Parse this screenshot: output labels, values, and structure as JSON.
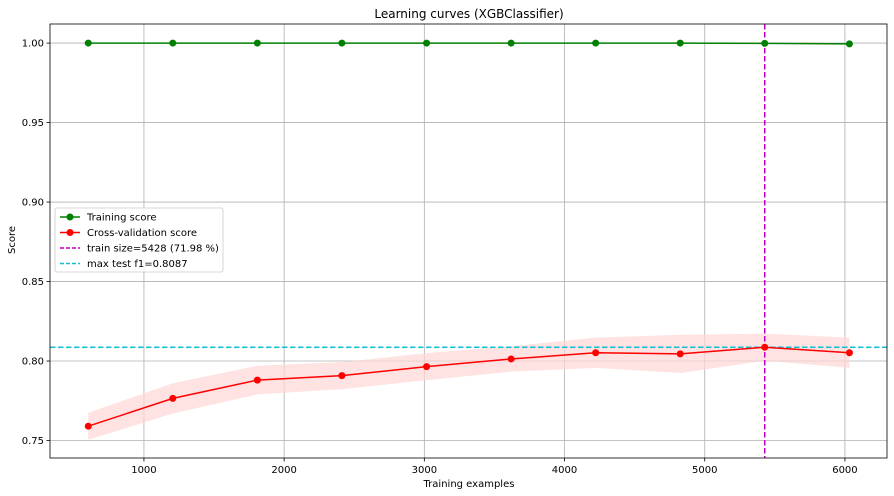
{
  "chart_data": {
    "type": "line",
    "title": "Learning curves (XGBClassifier)",
    "xlabel": "Training examples",
    "ylabel": "Score",
    "xlim": [
      330,
      6300
    ],
    "ylim": [
      0.739,
      1.012
    ],
    "xticks": [
      1000,
      2000,
      3000,
      4000,
      5000,
      6000
    ],
    "xtick_labels": [
      "1000",
      "2000",
      "3000",
      "4000",
      "5000",
      "6000"
    ],
    "yticks": [
      0.75,
      0.8,
      0.85,
      0.9,
      0.95,
      1.0
    ],
    "ytick_labels": [
      "0.75",
      "0.80",
      "0.85",
      "0.90",
      "0.95",
      "1.00"
    ],
    "grid": true,
    "legend_position": "center-left",
    "x": [
      603,
      1206,
      1809,
      2412,
      3016,
      3619,
      4222,
      4825,
      5428,
      6032
    ],
    "series": [
      {
        "name": "Training score",
        "color": "#008000",
        "values": [
          1.0,
          1.0,
          1.0,
          1.0,
          1.0,
          1.0,
          1.0,
          1.0,
          0.9998,
          0.9995
        ],
        "std": [
          0.0,
          0.0,
          0.0,
          0.0,
          0.0,
          0.0,
          0.0,
          0.0,
          0.0002,
          0.0003
        ]
      },
      {
        "name": "Cross-validation score",
        "color": "#ff0000",
        "fill_color": "#ffd6d6",
        "values": [
          0.759,
          0.7765,
          0.788,
          0.7908,
          0.7965,
          0.8013,
          0.8052,
          0.8045,
          0.8087,
          0.8052
        ],
        "std": [
          0.0085,
          0.0095,
          0.009,
          0.0085,
          0.0085,
          0.008,
          0.0095,
          0.012,
          0.0085,
          0.0095
        ]
      }
    ],
    "reference_lines": [
      {
        "orientation": "vertical",
        "name": "train size=5428 (71.98 %)",
        "value": 5428,
        "color": "#c000c0"
      },
      {
        "orientation": "horizontal",
        "name": "max test f1=0.8087",
        "value": 0.8087,
        "color": "#17becf"
      }
    ]
  }
}
